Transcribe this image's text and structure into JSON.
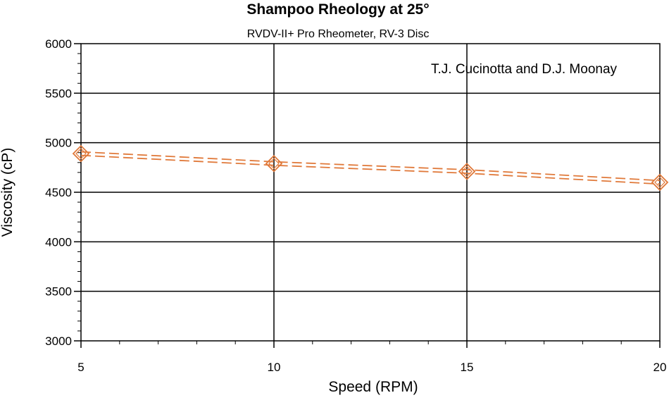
{
  "chart_data": {
    "type": "line",
    "title": "Shampoo Rheology at 25°",
    "subtitle": "RVDV-II+ Pro Rheometer, RV-3 Disc",
    "annotation": "T.J. Cucinotta and D.J. Moonay",
    "xlabel": "Speed (RPM)",
    "ylabel": "Viscosity (cP)",
    "xlim": [
      5,
      20
    ],
    "ylim": [
      3000,
      6000
    ],
    "x_ticks": [
      "5",
      "10",
      "15",
      "20"
    ],
    "y_ticks": [
      "3000",
      "3500",
      "4000",
      "4500",
      "5000",
      "5500",
      "6000"
    ],
    "grid": true,
    "series": [
      {
        "color": "#e0793a",
        "style": "dashed-double",
        "marker": "diamond",
        "points": [
          {
            "x": 5,
            "y": 4890
          },
          {
            "x": 10,
            "y": 4790
          },
          {
            "x": 15,
            "y": 4710
          },
          {
            "x": 20,
            "y": 4600
          }
        ]
      }
    ]
  }
}
